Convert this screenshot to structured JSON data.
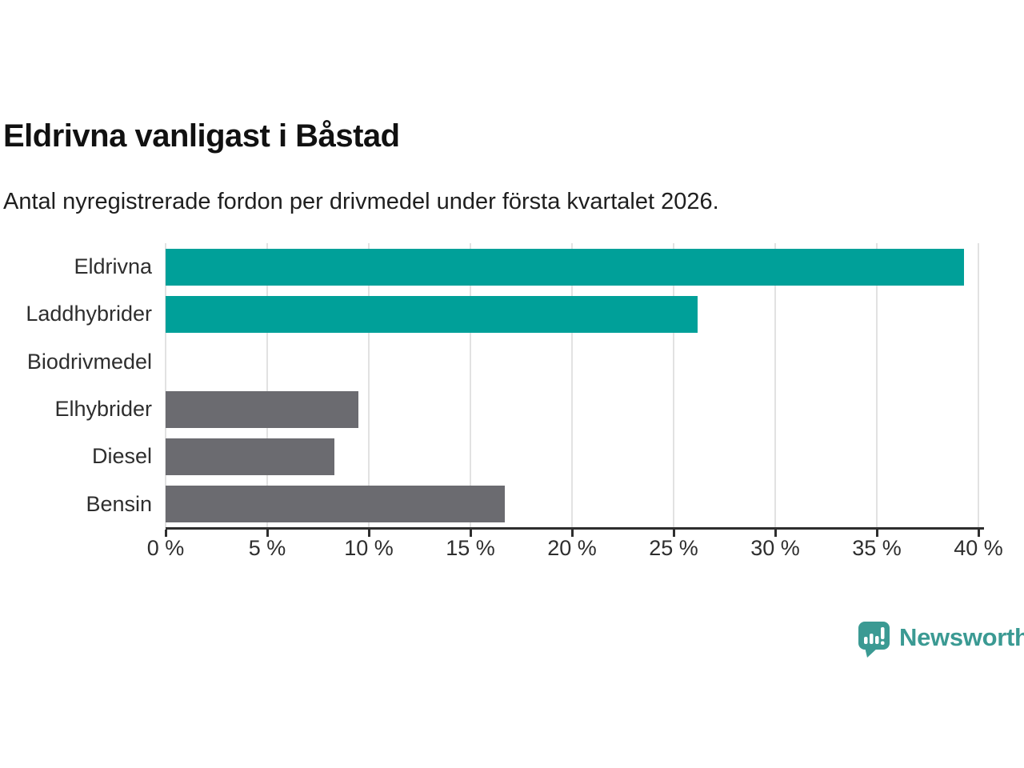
{
  "title": "Eldrivna vanligast i Båstad",
  "subtitle": "Antal nyregistrerade fordon per drivmedel under första kvartalet 2026.",
  "chart_data": {
    "type": "bar",
    "orientation": "horizontal",
    "categories": [
      "Eldrivna",
      "Laddhybrider",
      "Biodrivmedel",
      "Elhybrider",
      "Diesel",
      "Bensin"
    ],
    "values": [
      39.3,
      26.2,
      0,
      9.5,
      8.3,
      16.7
    ],
    "unit": "%",
    "title": "Eldrivna vanligast i Båstad",
    "xlabel": "",
    "ylabel": "",
    "xlim": [
      0,
      40
    ],
    "x_tick_step": 5,
    "x_tick_labels": [
      "0 %",
      "5 %",
      "10 %",
      "15 %",
      "20 %",
      "25 %",
      "30 %",
      "35 %",
      "40 %"
    ],
    "grid": true,
    "legend": false,
    "bar_colors": [
      "#00a099",
      "#00a099",
      "#6b6b70",
      "#6b6b70",
      "#6b6b70",
      "#6b6b70"
    ],
    "highlight_color": "#00a099",
    "default_color": "#6b6b70",
    "highlighted_categories": [
      "Eldrivna",
      "Laddhybrider"
    ]
  },
  "branding": {
    "logo_text": "Newsworthy",
    "logo_color": "#3b9a93",
    "logo_icon": "bar-chart-speech-bubble"
  }
}
